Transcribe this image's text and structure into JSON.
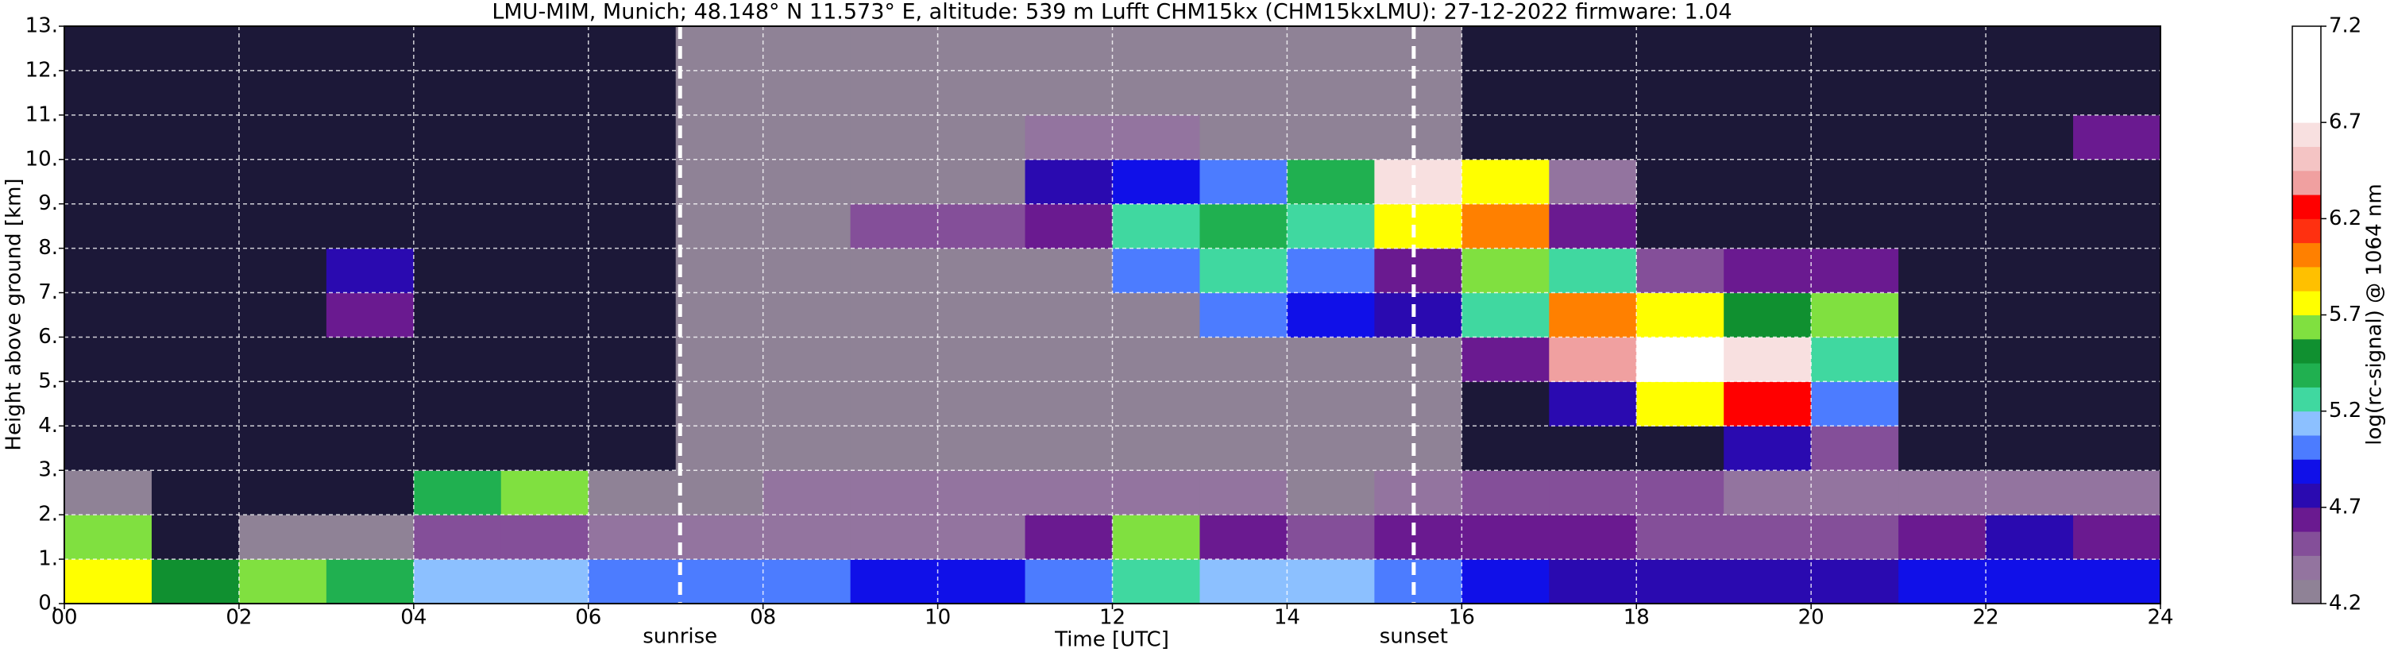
{
  "chart_data": {
    "type": "heatmap",
    "title": "LMU-MIM, Munich; 48.148° N 11.573° E, altitude: 539 m    Lufft CHM15kx (CHM15kxLMU): 27-12-2022    firmware: 1.04",
    "x_label": "Time [UTC]",
    "y_label": "Height above ground [km]",
    "colorbar_label": "log(rc-signal) @ 1064 nm",
    "xlim": [
      0,
      24
    ],
    "ylim": [
      0,
      13
    ],
    "xticks": [
      {
        "value": 0,
        "label": "00"
      },
      {
        "value": 2,
        "label": "02"
      },
      {
        "value": 4,
        "label": "04"
      },
      {
        "value": 6,
        "label": "06"
      },
      {
        "value": 8,
        "label": "08"
      },
      {
        "value": 10,
        "label": "10"
      },
      {
        "value": 12,
        "label": "12"
      },
      {
        "value": 14,
        "label": "14"
      },
      {
        "value": 16,
        "label": "16"
      },
      {
        "value": 18,
        "label": "18"
      },
      {
        "value": 20,
        "label": "20"
      },
      {
        "value": 22,
        "label": "22"
      },
      {
        "value": 24,
        "label": "24"
      }
    ],
    "yticks": [
      {
        "value": 0,
        "label": "0."
      },
      {
        "value": 1,
        "label": "1."
      },
      {
        "value": 2,
        "label": "2."
      },
      {
        "value": 3,
        "label": "3."
      },
      {
        "value": 4,
        "label": "4."
      },
      {
        "value": 5,
        "label": "5."
      },
      {
        "value": 6,
        "label": "6."
      },
      {
        "value": 7,
        "label": "7."
      },
      {
        "value": 8,
        "label": "8."
      },
      {
        "value": 9,
        "label": "9."
      },
      {
        "value": 10,
        "label": "10."
      },
      {
        "value": 11,
        "label": "11."
      },
      {
        "value": 12,
        "label": "12."
      },
      {
        "value": 13,
        "label": "13."
      }
    ],
    "grid": true,
    "events": [
      {
        "x": 7.05,
        "label": "sunrise"
      },
      {
        "x": 15.45,
        "label": "sunset"
      }
    ],
    "clim": [
      4.2,
      7.2
    ],
    "cbar_ticks": [
      4.2,
      4.7,
      5.2,
      5.7,
      6.2,
      6.7,
      7.2
    ],
    "under_color": "#1c1838",
    "colormap": [
      "#8f8296",
      "#93749f",
      "#844f99",
      "#6a1a90",
      "#2a0ab0",
      "#1010e8",
      "#4c7cff",
      "#8cc0ff",
      "#40d8a0",
      "#20b050",
      "#109030",
      "#80e040",
      "#ffff00",
      "#ffc000",
      "#ff8000",
      "#ff3010",
      "#ff0000",
      "#f0a0a0",
      "#f4c4c4",
      "#f8e0e0",
      "#ffffff",
      "#ffffff",
      "#ffffff",
      "#ffffff"
    ],
    "x": [
      0.5,
      1.5,
      2.5,
      3.5,
      4.5,
      5.5,
      6.5,
      7.5,
      8.5,
      9.5,
      10.5,
      11.5,
      12.5,
      13.5,
      14.5,
      15.5,
      16.5,
      17.5,
      18.5,
      19.5,
      20.5,
      21.5,
      22.5,
      23.5
    ],
    "y": [
      0.5,
      1.5,
      2.5,
      3.5,
      4.5,
      5.5,
      6.5,
      7.5,
      8.5,
      9.5,
      10.5,
      11.5,
      12.5
    ],
    "z": [
      [
        5.8,
        5.5,
        5.6,
        5.4,
        5.1,
        5.1,
        5.0,
        5.0,
        5.0,
        4.9,
        4.9,
        5.0,
        5.2,
        5.1,
        5.1,
        5.0,
        4.9,
        4.8,
        4.8,
        4.8,
        4.8,
        4.9,
        4.9,
        4.9
      ],
      [
        5.6,
        4.1,
        4.2,
        4.3,
        4.5,
        4.5,
        4.4,
        4.4,
        4.4,
        4.4,
        4.4,
        4.6,
        5.6,
        4.6,
        4.5,
        4.6,
        4.6,
        4.6,
        4.5,
        4.5,
        4.5,
        4.6,
        4.7,
        4.6
      ],
      [
        4.3,
        4.0,
        4.0,
        4.0,
        5.4,
        5.6,
        4.2,
        4.3,
        4.4,
        4.4,
        4.4,
        4.4,
        4.4,
        4.4,
        4.3,
        4.4,
        4.5,
        4.5,
        4.5,
        4.4,
        4.4,
        4.4,
        4.4,
        4.4
      ],
      [
        4.1,
        4.1,
        4.1,
        4.1,
        4.1,
        4.1,
        4.1,
        4.2,
        4.25,
        4.25,
        4.25,
        4.25,
        4.25,
        4.25,
        4.25,
        4.2,
        4.1,
        4.1,
        4.1,
        4.8,
        4.5,
        4.1,
        4.1,
        4.1
      ],
      [
        4.1,
        4.1,
        4.1,
        4.1,
        4.1,
        4.1,
        4.1,
        4.2,
        4.25,
        4.25,
        4.25,
        4.25,
        4.25,
        4.25,
        4.25,
        4.2,
        4.1,
        4.7,
        5.8,
        6.2,
        5.0,
        4.1,
        4.1,
        4.1
      ],
      [
        4.1,
        4.1,
        4.1,
        4.1,
        4.1,
        4.1,
        4.1,
        4.2,
        4.25,
        4.25,
        4.25,
        4.25,
        4.25,
        4.25,
        4.25,
        4.2,
        4.6,
        6.4,
        6.8,
        6.6,
        5.2,
        4.1,
        4.1,
        4.1
      ],
      [
        4.1,
        4.1,
        4.1,
        4.6,
        4.1,
        4.1,
        4.1,
        4.2,
        4.25,
        4.25,
        4.25,
        4.25,
        4.25,
        5.0,
        4.9,
        4.8,
        5.2,
        6.0,
        5.8,
        5.5,
        5.6,
        4.1,
        4.1,
        4.1
      ],
      [
        4.1,
        4.1,
        4.1,
        4.7,
        4.1,
        4.1,
        4.1,
        4.2,
        4.25,
        4.25,
        4.25,
        4.25,
        5.0,
        5.3,
        5.0,
        4.6,
        5.6,
        5.3,
        4.5,
        4.6,
        4.6,
        4.1,
        4.1,
        4.1
      ],
      [
        4.1,
        4.1,
        4.1,
        4.1,
        4.1,
        4.1,
        4.1,
        4.2,
        4.25,
        4.5,
        4.5,
        4.6,
        5.2,
        5.4,
        5.3,
        5.8,
        6.0,
        4.6,
        4.1,
        4.1,
        4.1,
        4.1,
        4.1,
        4.1
      ],
      [
        4.1,
        4.1,
        4.1,
        4.1,
        4.1,
        4.1,
        4.1,
        4.2,
        4.25,
        4.25,
        4.3,
        4.7,
        4.9,
        5.0,
        5.4,
        6.6,
        5.7,
        4.4,
        4.1,
        4.1,
        4.1,
        4.1,
        4.1,
        4.1
      ],
      [
        4.1,
        4.1,
        4.1,
        4.1,
        4.1,
        4.1,
        4.1,
        4.2,
        4.3,
        4.3,
        4.3,
        4.35,
        4.35,
        4.3,
        4.3,
        4.2,
        4.1,
        4.1,
        4.1,
        4.1,
        4.1,
        4.1,
        4.1,
        4.6
      ],
      [
        4.1,
        4.1,
        4.1,
        4.1,
        4.1,
        4.1,
        4.1,
        4.2,
        4.25,
        4.25,
        4.25,
        4.25,
        4.25,
        4.25,
        4.25,
        4.2,
        4.1,
        4.1,
        4.1,
        4.1,
        4.1,
        4.1,
        4.1,
        4.1
      ],
      [
        4.1,
        4.1,
        4.1,
        4.1,
        4.1,
        4.1,
        4.1,
        4.2,
        4.25,
        4.25,
        4.25,
        4.25,
        4.25,
        4.25,
        4.25,
        4.2,
        4.1,
        4.1,
        4.1,
        4.1,
        4.1,
        4.1,
        4.1,
        4.1
      ]
    ]
  }
}
